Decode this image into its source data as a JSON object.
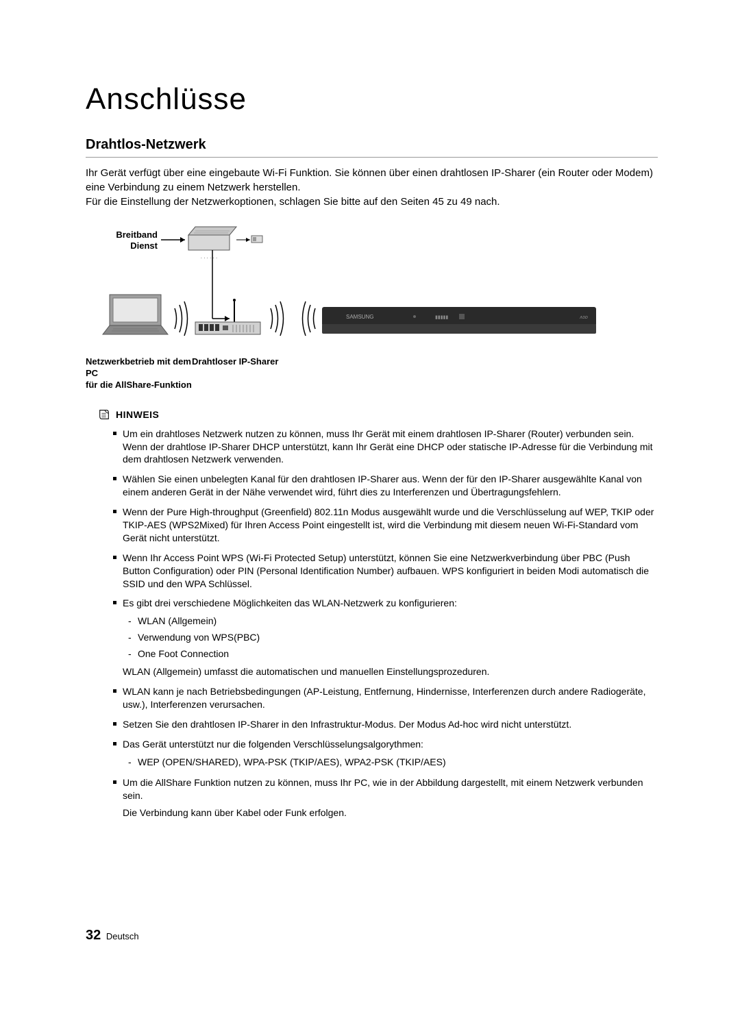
{
  "title": "Anschlüsse",
  "section_heading": "Drahtlos-Netzwerk",
  "intro_p1": "Ihr Gerät verfügt über eine eingebaute Wi-Fi Funktion. Sie können über einen drahtlosen IP-Sharer (ein Router oder Modem) eine Verbindung zu einem Netzwerk herstellen.",
  "intro_p2": "Für die Einstellung der Netzwerkoptionen, schlagen Sie bitte auf den Seiten 45 zu 49 nach.",
  "diagram": {
    "label_broadband_1": "Breitband",
    "label_broadband_2": "Dienst",
    "label_pc_1": "Netzwerkbetrieb mit dem PC",
    "label_pc_2": "für die AllShare-Funktion",
    "label_router": "Drahtloser IP-Sharer",
    "colors": {
      "line": "#000000",
      "modem_fill": "#b8b8b8",
      "modem_stroke": "#555555",
      "device_dark": "#2a2a2a",
      "laptop_fill": "#888888"
    }
  },
  "hinweis_label": "HINWEIS",
  "notes": [
    {
      "text": "Um ein drahtloses Netzwerk nutzen zu können, muss Ihr Gerät mit einem drahtlosen IP-Sharer (Router) verbunden sein. Wenn der drahtlose IP-Sharer DHCP unterstützt, kann Ihr Gerät eine DHCP oder statische IP-Adresse für die Verbindung mit dem drahtlosen Netzwerk verwenden."
    },
    {
      "text": "Wählen Sie einen unbelegten Kanal für den drahtlosen IP-Sharer aus. Wenn der für den IP-Sharer ausgewählte Kanal von einem anderen Gerät in der Nähe verwendet wird, führt dies zu Interferenzen und Übertragungsfehlern."
    },
    {
      "text": "Wenn der Pure High-throughput (Greenfield) 802.11n Modus ausgewählt wurde und die Verschlüsselung auf WEP, TKIP oder TKIP-AES (WPS2Mixed) für Ihren Access Point eingestellt ist, wird die Verbindung mit diesem neuen Wi-Fi-Standard vom Gerät nicht unterstützt."
    },
    {
      "text": "Wenn Ihr Access Point WPS (Wi-Fi Protected Setup) unterstützt, können Sie eine Netzwerkverbindung über PBC (Push Button Configuration) oder PIN (Personal Identification Number) aufbauen. WPS konfiguriert in beiden Modi automatisch die SSID und den WPA Schlüssel."
    },
    {
      "text": "Es gibt drei verschiedene Möglichkeiten das WLAN-Netzwerk zu konfigurieren:",
      "sub": [
        "WLAN (Allgemein)",
        "Verwendung von WPS(PBC)",
        "One Foot Connection"
      ],
      "extra": "WLAN (Allgemein) umfasst die automatischen und manuellen Einstellungsprozeduren."
    },
    {
      "text": "WLAN kann je nach Betriebsbedingungen (AP-Leistung, Entfernung, Hindernisse, Interferenzen durch andere Radiogeräte, usw.), Interferenzen verursachen."
    },
    {
      "text": "Setzen Sie den drahtlosen IP-Sharer in den Infrastruktur-Modus. Der Modus Ad-hoc wird nicht unterstützt."
    },
    {
      "text": "Das Gerät unterstützt nur die folgenden Verschlüsselungsalgorythmen:",
      "sub": [
        "WEP (OPEN/SHARED), WPA-PSK (TKIP/AES), WPA2-PSK (TKIP/AES)"
      ]
    },
    {
      "text": "Um die AllShare Funktion nutzen zu können, muss Ihr PC, wie in der Abbildung dargestellt, mit einem Netzwerk verbunden sein.",
      "extra": "Die Verbindung kann über Kabel oder Funk erfolgen."
    }
  ],
  "footer": {
    "page_number": "32",
    "language": "Deutsch"
  }
}
